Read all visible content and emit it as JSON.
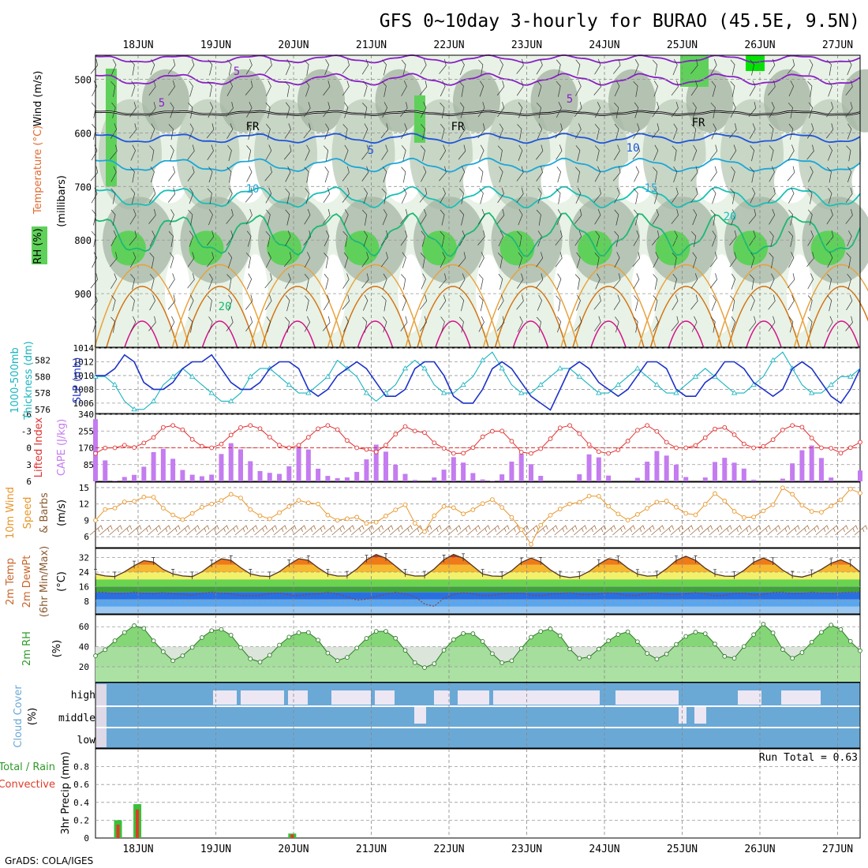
{
  "title": "GFS 0~10day 3-hourly for BURAO (45.5E, 9.5N)",
  "credit": "GrADS: COLA/IGES",
  "dates": [
    "18JUN",
    "19JUN",
    "20JUN",
    "21JUN",
    "22JUN",
    "23JUN",
    "24JUN",
    "25JUN",
    "26JUN",
    "27JUN"
  ],
  "colors": {
    "rh_light": "#e8f2e6",
    "rh_mid": "#c4d3c2",
    "rh_dark": "#a6b6a4",
    "rh_green": "#5fd15a",
    "rh_bright": "#00e400",
    "temp_purple": "#8a20c8",
    "temp_blue": "#1f55d8",
    "temp_cyan": "#1ba7d8",
    "temp_teal": "#18c0b8",
    "temp_green": "#1db874",
    "temp_orange": "#e8a13a",
    "temp_dorange": "#d47210",
    "temp_magenta": "#d60f8a",
    "slp": "#1c32c8",
    "thick": "#19b4c0",
    "li": "#e03030",
    "cape": "#c47cf0",
    "wind": "#e8962a",
    "barb": "#a06a40",
    "rh2m": "#5cc84a",
    "cloud": "#6aa9d6",
    "cloud_gap": "#ece7f3",
    "precip_total": "#3ac03a",
    "precip_conv": "#e03a28"
  },
  "panels": {
    "upper": {
      "ylabel1": "Wind (m/s)",
      "ylabel2": "Temperature (°C)",
      "ylabel3": "RH (%)",
      "axis": "(millibars)",
      "contours": [
        "5",
        "5",
        "5",
        "FR",
        "FR",
        "FR",
        "5",
        "10",
        "10",
        "15",
        "20"
      ]
    },
    "slp": {
      "ylabel1": "1000-500mb",
      "ylabel2": "Thickness (dm)",
      "ylabel3": "SLP (mb)"
    },
    "cape": {
      "ylabel1": "Lifted Index",
      "ylabel2": "CAPE (J/kg)"
    },
    "wind": {
      "ylabel1": "10m Wind",
      "ylabel2": "Speed",
      "ylabel3": "& Barbs",
      "ylabel4": "(m/s)"
    },
    "temp": {
      "ylabel1": "2m Temp",
      "ylabel2": "2m DewPt",
      "ylabel3": "(6hr Min/Max)",
      "ylabel4": "(°C)"
    },
    "rh": {
      "ylabel1": "2m RH",
      "ylabel2": "(%)"
    },
    "cloud": {
      "ylabel1": "Cloud Cover",
      "ylabel2": "(%)",
      "levels": [
        "high",
        "middle",
        "low"
      ]
    },
    "precip": {
      "ylabel1": "Total / Rain",
      "ylabel2": "Convective",
      "ylabel3": "3hr Precip (mm)",
      "run_total": "Run Total = 0.63"
    }
  },
  "chart_data": [
    {
      "type": "area",
      "title": "RH / Temperature / Wind cross-section",
      "ylim": [
        1000,
        440
      ],
      "yticks": [
        500,
        600,
        700,
        800,
        900
      ],
      "x": "3-hourly, 17JUN 12Z to 27JUN 06Z"
    },
    {
      "type": "line",
      "title": "SLP and 1000-500mb Thickness",
      "slp_ticks": [
        "1014",
        "1012",
        "1010",
        "1008",
        "1006"
      ],
      "thick_ticks": [
        "582",
        "580",
        "578",
        "576"
      ],
      "series": [
        {
          "name": "SLP (mb)",
          "ylim": [
            1004.5,
            1014
          ],
          "values": [
            1010,
            1010,
            1011,
            1013,
            1012,
            1009,
            1008,
            1008,
            1009,
            1011,
            1012,
            1012,
            1013,
            1011,
            1009,
            1008,
            1008,
            1009,
            1011,
            1012,
            1012,
            1011,
            1008,
            1007,
            1008,
            1010,
            1011,
            1012,
            1011,
            1009,
            1007,
            1007,
            1008,
            1011,
            1012,
            1012,
            1010,
            1007,
            1006,
            1006,
            1008,
            1011,
            1012,
            1011,
            1009,
            1007,
            1006,
            1005,
            1008,
            1011,
            1012,
            1011,
            1009,
            1008,
            1007,
            1008,
            1010,
            1012,
            1012,
            1011,
            1008,
            1007,
            1007,
            1009,
            1010,
            1012,
            1012,
            1011,
            1009,
            1008,
            1007,
            1008,
            1011,
            1012,
            1011,
            1009,
            1007,
            1006,
            1008,
            1011
          ]
        },
        {
          "name": "Thickness (dm)",
          "ylim": [
            575.5,
            583.5
          ],
          "values": [
            580,
            580,
            579,
            577,
            576,
            576,
            577,
            579,
            580,
            581,
            580,
            579,
            578,
            577,
            577,
            578,
            580,
            581,
            581,
            580,
            579,
            578,
            578,
            579,
            580,
            582,
            581,
            580,
            578,
            577,
            578,
            579,
            581,
            582,
            581,
            579,
            578,
            578,
            579,
            580,
            582,
            583,
            581,
            579,
            578,
            578,
            579,
            580,
            581,
            581,
            580,
            579,
            578,
            578,
            579,
            580,
            581,
            580,
            579,
            578,
            578,
            579,
            580,
            581,
            580,
            579,
            578,
            578,
            579,
            580,
            582,
            583,
            581,
            579,
            578,
            578,
            579,
            580,
            580,
            581
          ]
        }
      ]
    },
    {
      "type": "bar",
      "title": "CAPE and Lifted Index",
      "cape_ticks": [
        "340",
        "255",
        "170",
        "85"
      ],
      "li_ticks": [
        "-6",
        "-3",
        "0",
        "3",
        "6"
      ],
      "series": [
        {
          "name": "CAPE (J/kg)",
          "ylim": [
            0,
            340
          ],
          "values": [
            315,
            115,
            0,
            20,
            30,
            40,
            130,
            170,
            160,
            85,
            45,
            30,
            25,
            35,
            140,
            195,
            170,
            115,
            55,
            45,
            40,
            35,
            115,
            215,
            135,
            40,
            25,
            15,
            20,
            45,
            100,
            190,
            170,
            100,
            55,
            15,
            0,
            0,
            30,
            70,
            135,
            90,
            40,
            10,
            0,
            25,
            80,
            155,
            110,
            55,
            0,
            0,
            0,
            0,
            45,
            150,
            120,
            30,
            0,
            0,
            0,
            70,
            160,
            145,
            115,
            60,
            0,
            0,
            25,
            110,
            120,
            95,
            70,
            10,
            0,
            0,
            0,
            35,
            155,
            160,
            195,
            85,
            0,
            0,
            0,
            55
          ]
        },
        {
          "name": "Lifted Index",
          "ylim": [
            6,
            -6
          ],
          "values": [
            1,
            0,
            0,
            -0.5,
            0,
            -1,
            -2,
            -4,
            -4,
            -3,
            -1,
            0,
            0,
            -1,
            -3,
            -4,
            -4,
            -3,
            -1,
            0,
            0,
            -1,
            -3,
            -4,
            -4,
            -2,
            0,
            0,
            1,
            0,
            -2,
            -4,
            -3,
            -3,
            -1,
            0,
            1,
            1,
            0,
            -2,
            -3,
            -3,
            -1,
            1,
            1,
            0,
            -2,
            -4,
            -4,
            -2,
            0,
            1,
            1,
            0,
            -2,
            -4,
            -4,
            -2,
            0,
            0,
            0,
            -1,
            -3,
            -4,
            -3,
            -1,
            0,
            0,
            -1,
            -3,
            -4,
            -4,
            -2,
            0,
            0,
            1,
            0,
            -1
          ]
        }
      ]
    },
    {
      "type": "line",
      "title": "10m Wind Speed",
      "yticks": [
        "15",
        "12",
        "9",
        "6"
      ],
      "ylim": [
        4,
        16
      ],
      "series": [
        {
          "name": "Wind Speed (m/s)",
          "values": [
            9,
            11,
            11,
            12,
            13,
            12,
            14,
            13,
            11,
            10,
            9,
            10,
            11,
            12,
            12,
            13,
            14,
            13,
            11,
            10,
            9,
            10,
            11,
            12,
            13,
            12,
            12,
            10,
            9,
            9,
            10,
            9,
            8,
            9,
            10,
            11,
            12,
            9,
            6,
            9,
            11,
            12,
            11,
            10,
            11,
            12,
            13,
            12,
            10,
            9,
            6,
            4,
            9,
            10,
            11,
            12,
            12,
            13,
            14,
            13,
            11,
            10,
            9,
            10,
            11,
            12,
            13,
            12,
            11,
            10,
            10,
            12,
            14,
            13,
            11,
            10,
            9,
            10,
            11,
            12,
            15,
            14,
            12,
            11,
            10,
            11,
            12,
            13,
            15,
            14
          ]
        }
      ]
    },
    {
      "type": "area",
      "title": "2m Temp / Dewpoint",
      "yticks": [
        "32",
        "24",
        "16",
        "8"
      ],
      "ylim": [
        1,
        37
      ],
      "series": [
        {
          "name": "2m Temp",
          "values": [
            23,
            22,
            21,
            23,
            26,
            29,
            31,
            29,
            25,
            23,
            22,
            21,
            23,
            26,
            30,
            32,
            30,
            26,
            23,
            22,
            21,
            23,
            26,
            30,
            32,
            30,
            26,
            23,
            22,
            21,
            24,
            28,
            33,
            34,
            31,
            27,
            23,
            22,
            21,
            24,
            28,
            33,
            34,
            31,
            27,
            23,
            22,
            21,
            23,
            27,
            31,
            32,
            29,
            25,
            22,
            21,
            21,
            23,
            26,
            30,
            32,
            30,
            26,
            23,
            22,
            21,
            24,
            28,
            32,
            33,
            30,
            26,
            23,
            22,
            21,
            23,
            27,
            31,
            32,
            29,
            25,
            22,
            21,
            22,
            24,
            27,
            30,
            31,
            28,
            24
          ]
        },
        {
          "name": "2m DewPt",
          "values": [
            13,
            13,
            12,
            12,
            13,
            13,
            12,
            12,
            13,
            12,
            12,
            11,
            12,
            13,
            13,
            12,
            12,
            11,
            11,
            11,
            12,
            13,
            12,
            11,
            11,
            12,
            12,
            13,
            12,
            11,
            9,
            8,
            10,
            11,
            12,
            13,
            12,
            11,
            8,
            3,
            8,
            11,
            12,
            13,
            12,
            11,
            11,
            12,
            12,
            13,
            12,
            11,
            11,
            12,
            12,
            13,
            12,
            11,
            12,
            12,
            13,
            12,
            11,
            11,
            12,
            13,
            12,
            11,
            12,
            12,
            13,
            12,
            11,
            11,
            12,
            13,
            12,
            11,
            12,
            13,
            13,
            12,
            12,
            13,
            13,
            12,
            12,
            13,
            13,
            13
          ]
        }
      ]
    },
    {
      "type": "area",
      "title": "2m RH",
      "yticks": [
        "60",
        "40",
        "20"
      ],
      "ylim": [
        5,
        72
      ],
      "series": [
        {
          "name": "2m RH (%)",
          "values": [
            31,
            36,
            44,
            52,
            58,
            64,
            55,
            43,
            34,
            26,
            30,
            37,
            46,
            54,
            58,
            57,
            50,
            38,
            28,
            24,
            29,
            38,
            47,
            52,
            55,
            54,
            46,
            34,
            26,
            27,
            35,
            44,
            52,
            57,
            55,
            48,
            37,
            25,
            20,
            17,
            31,
            41,
            50,
            54,
            53,
            46,
            35,
            25,
            22,
            31,
            44,
            52,
            56,
            58,
            52,
            40,
            29,
            27,
            33,
            41,
            48,
            53,
            55,
            46,
            35,
            27,
            29,
            37,
            46,
            52,
            55,
            53,
            44,
            32,
            25,
            35,
            46,
            56,
            65,
            52,
            37,
            28,
            32,
            41,
            51,
            58,
            64,
            55,
            44,
            36
          ]
        }
      ]
    },
    {
      "type": "bar",
      "title": "Cloud Cover",
      "categories": [
        "high",
        "middle",
        "low"
      ]
    },
    {
      "type": "bar",
      "title": "3hr Precip",
      "yticks": [
        "0.8",
        "0.6",
        "0.4",
        "0.2",
        "0"
      ],
      "ylim": [
        0,
        1
      ],
      "series": [
        {
          "name": "Total / Rain",
          "values": [
            0,
            0.2,
            0,
            0.38,
            0,
            0,
            0,
            0,
            0,
            0,
            0,
            0,
            0,
            0,
            0,
            0,
            0,
            0,
            0,
            0.05,
            0,
            0,
            0
          ]
        },
        {
          "name": "Convective",
          "values": [
            0,
            0.15,
            0,
            0.32,
            0,
            0,
            0,
            0,
            0,
            0,
            0,
            0,
            0,
            0,
            0,
            0,
            0,
            0,
            0,
            0.04,
            0,
            0,
            0
          ]
        }
      ]
    }
  ]
}
